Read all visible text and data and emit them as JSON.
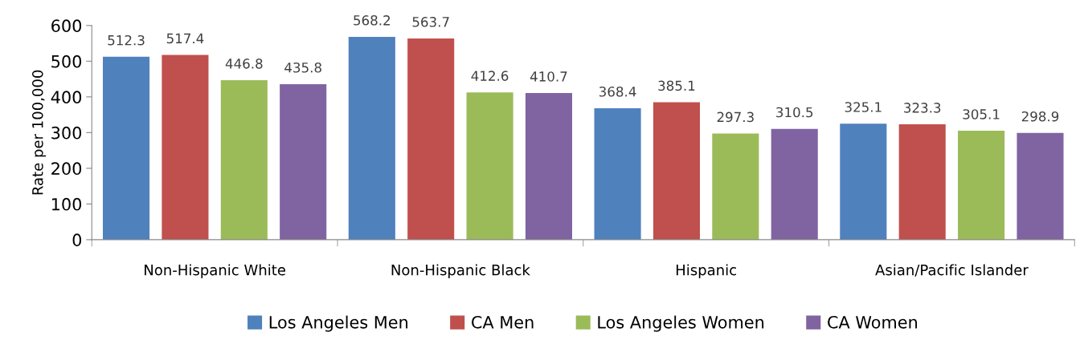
{
  "chart_data": {
    "type": "bar",
    "ylabel": "Rate per 100,000",
    "categories": [
      "Non-Hispanic White",
      "Non-Hispanic Black",
      "Hispanic",
      "Asian/Pacific Islander"
    ],
    "series": [
      {
        "name": "Los Angeles Men",
        "color": "#4f81bd",
        "values": [
          512.3,
          568.2,
          368.4,
          325.1
        ]
      },
      {
        "name": "CA Men",
        "color": "#c0504d",
        "values": [
          517.4,
          563.7,
          385.1,
          323.3
        ]
      },
      {
        "name": "Los Angeles Women",
        "color": "#9bbb59",
        "values": [
          446.8,
          412.6,
          297.3,
          305.1
        ]
      },
      {
        "name": "CA Women",
        "color": "#8064a2",
        "values": [
          435.8,
          410.7,
          310.5,
          298.9
        ]
      }
    ],
    "ylim": [
      0,
      600
    ],
    "yticks": [
      0,
      100,
      200,
      300,
      400,
      500,
      600
    ],
    "data_labels": true,
    "grid": false,
    "legend": "bottom"
  }
}
